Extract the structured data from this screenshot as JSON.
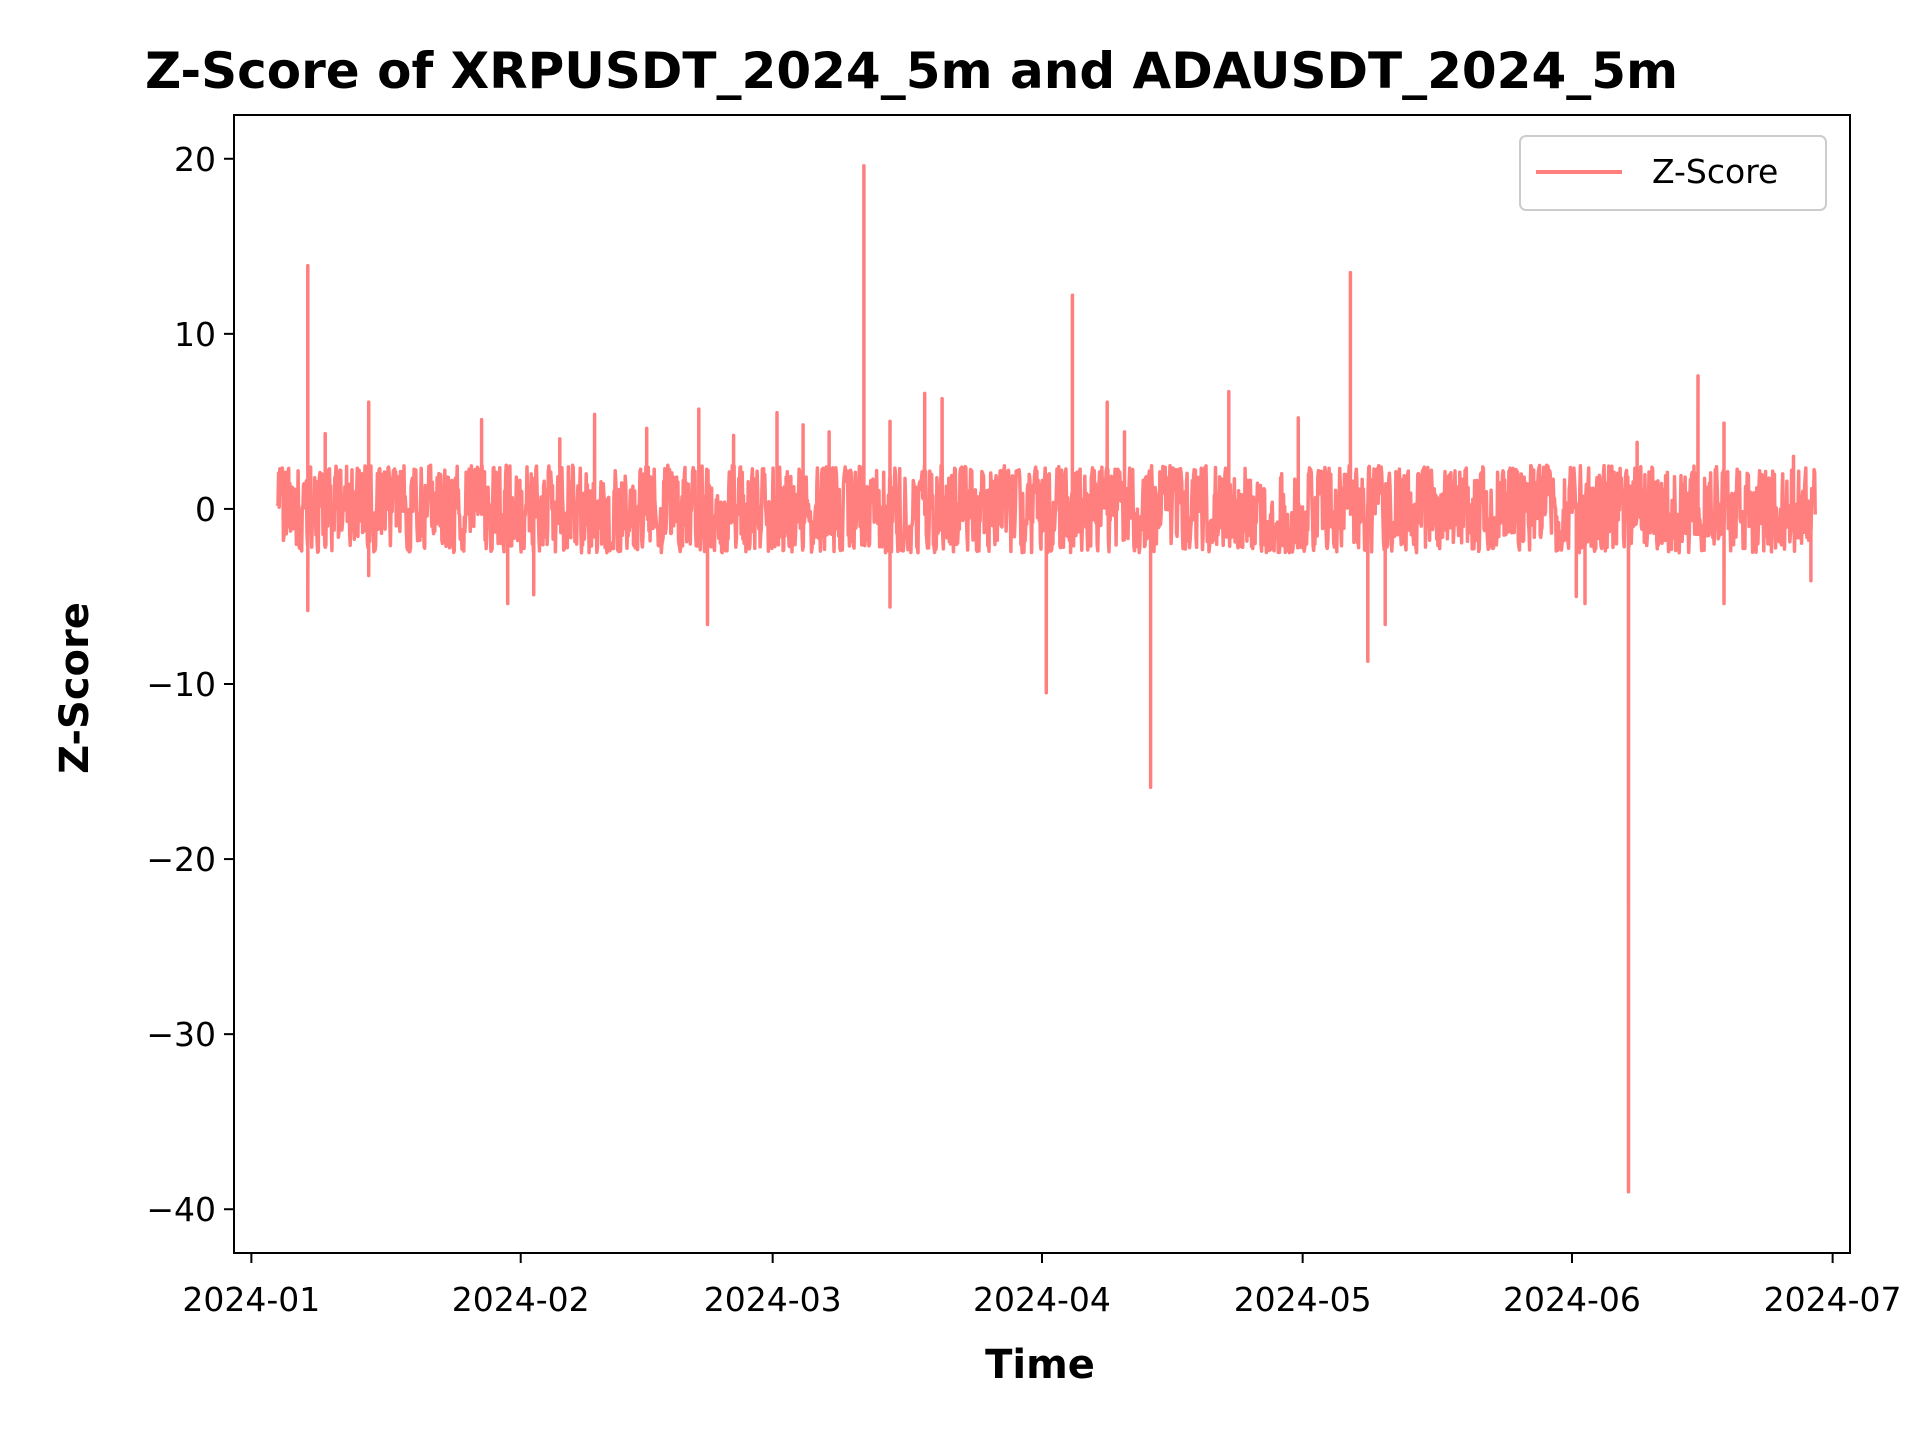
{
  "chart_data": {
    "type": "line",
    "title": "Z-Score of XRPUSDT_2024_5m and ADAUSDT_2024_5m",
    "xlabel": "Time",
    "ylabel": "Z-Score",
    "x_ticks": [
      "2024-01",
      "2024-02",
      "2024-03",
      "2024-04",
      "2024-05",
      "2024-06",
      "2024-07"
    ],
    "y_ticks": [
      20,
      10,
      0,
      -10,
      -20,
      -30,
      -40
    ],
    "y_tick_labels": [
      "20",
      "10",
      "0",
      "−10",
      "−20",
      "−30",
      "−40"
    ],
    "xlim": [
      "2023-12-30",
      "2024-07-03"
    ],
    "ylim": [
      -42.5,
      22.5
    ],
    "grid": false,
    "legend_position": "top-right",
    "series": [
      {
        "name": "Z-Score",
        "color": "#ff7f7f",
        "x_start": "2024-01-04",
        "x_end": "2024-06-29",
        "typical_range": [
          -2.5,
          2.5
        ],
        "spikes": [
          {
            "x": "2024-01-07",
            "y": 13.9
          },
          {
            "x": "2024-01-07",
            "y": -5.8
          },
          {
            "x": "2024-01-09",
            "y": 4.3
          },
          {
            "x": "2024-01-14",
            "y": 6.1
          },
          {
            "x": "2024-01-14",
            "y": -3.8
          },
          {
            "x": "2024-01-27",
            "y": 5.1
          },
          {
            "x": "2024-01-30",
            "y": -5.4
          },
          {
            "x": "2024-02-02",
            "y": -4.9
          },
          {
            "x": "2024-02-05",
            "y": 4.0
          },
          {
            "x": "2024-02-09",
            "y": 5.4
          },
          {
            "x": "2024-02-15",
            "y": 4.6
          },
          {
            "x": "2024-02-21",
            "y": 5.7
          },
          {
            "x": "2024-02-22",
            "y": -6.6
          },
          {
            "x": "2024-02-25",
            "y": 4.2
          },
          {
            "x": "2024-03-01",
            "y": 5.5
          },
          {
            "x": "2024-03-04",
            "y": 4.8
          },
          {
            "x": "2024-03-07",
            "y": 4.4
          },
          {
            "x": "2024-03-11",
            "y": 19.6
          },
          {
            "x": "2024-03-14",
            "y": 5.0
          },
          {
            "x": "2024-03-14",
            "y": -5.6
          },
          {
            "x": "2024-03-18",
            "y": 6.6
          },
          {
            "x": "2024-03-20",
            "y": 6.3
          },
          {
            "x": "2024-04-01",
            "y": -10.5
          },
          {
            "x": "2024-04-04",
            "y": 12.2
          },
          {
            "x": "2024-04-08",
            "y": 6.1
          },
          {
            "x": "2024-04-10",
            "y": 4.4
          },
          {
            "x": "2024-04-13",
            "y": -15.9
          },
          {
            "x": "2024-04-22",
            "y": 6.7
          },
          {
            "x": "2024-04-30",
            "y": 5.2
          },
          {
            "x": "2024-05-06",
            "y": 13.5
          },
          {
            "x": "2024-05-06",
            "y": 5.0
          },
          {
            "x": "2024-05-08",
            "y": -8.7
          },
          {
            "x": "2024-05-10",
            "y": -6.6
          },
          {
            "x": "2024-06-01",
            "y": -5.0
          },
          {
            "x": "2024-06-02",
            "y": -5.4
          },
          {
            "x": "2024-06-07",
            "y": -39.0
          },
          {
            "x": "2024-06-08",
            "y": 3.8
          },
          {
            "x": "2024-06-15",
            "y": 7.6
          },
          {
            "x": "2024-06-18",
            "y": 4.9
          },
          {
            "x": "2024-06-18",
            "y": -5.4
          },
          {
            "x": "2024-06-26",
            "y": 3.0
          },
          {
            "x": "2024-06-28",
            "y": -4.1
          }
        ]
      }
    ]
  }
}
